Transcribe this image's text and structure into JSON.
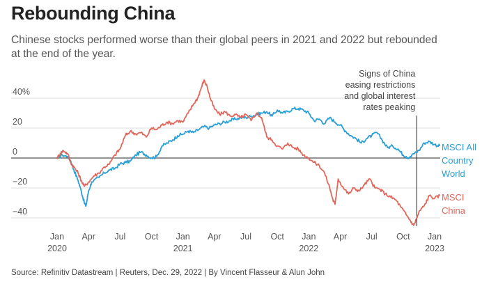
{
  "header": {
    "title": "Rebounding China",
    "subtitle": "Chinese stocks performed worse than their global peers in 2021 and 2022 but rebounded at the end of the year."
  },
  "footer": {
    "source": "Source: Refinitiv Datastream | Reuters, Dec. 29, 2022 | By Vincent Flasseur & Alun John"
  },
  "colors": {
    "msci_all": "#2a9fd6",
    "msci_china": "#e0675c",
    "grid": "#dddddd",
    "zero": "#555555"
  },
  "chart_data": {
    "type": "line",
    "title": "Rebounding China",
    "xlabel": "",
    "ylabel": "",
    "ylim": [
      -45,
      55
    ],
    "y_ticks": [
      {
        "value": 40,
        "label": "40%"
      },
      {
        "value": 20,
        "label": "20"
      },
      {
        "value": 0,
        "label": "0"
      },
      {
        "value": -20,
        "label": "−20"
      },
      {
        "value": -40,
        "label": "−40"
      }
    ],
    "x_ticks": [
      {
        "t": 0,
        "label": "Jan",
        "sub": "2020"
      },
      {
        "t": 3,
        "label": "Apr",
        "sub": ""
      },
      {
        "t": 6,
        "label": "Jul",
        "sub": ""
      },
      {
        "t": 9,
        "label": "Oct",
        "sub": ""
      },
      {
        "t": 12,
        "label": "Jan",
        "sub": "2021"
      },
      {
        "t": 15,
        "label": "Apr",
        "sub": ""
      },
      {
        "t": 18,
        "label": "Jul",
        "sub": ""
      },
      {
        "t": 21,
        "label": "Oct",
        "sub": ""
      },
      {
        "t": 24,
        "label": "Jan",
        "sub": "2022"
      },
      {
        "t": 27,
        "label": "Apr",
        "sub": ""
      },
      {
        "t": 30,
        "label": "Jul",
        "sub": ""
      },
      {
        "t": 33,
        "label": "Oct",
        "sub": ""
      },
      {
        "t": 36,
        "label": "Jan",
        "sub": "2023"
      }
    ],
    "annotation": {
      "t": 34.3,
      "lines": [
        "Signs of China",
        "easing restrictions",
        "and global interest",
        "rates peaking"
      ]
    },
    "series": [
      {
        "name": "MSCI All Country World",
        "label_lines": [
          "MSCI All",
          "Country",
          "World"
        ],
        "color_key": "msci_all",
        "points": [
          [
            0,
            0
          ],
          [
            0.5,
            2
          ],
          [
            1,
            1
          ],
          [
            1.3,
            -2
          ],
          [
            1.6,
            -8
          ],
          [
            2,
            -15
          ],
          [
            2.3,
            -22
          ],
          [
            2.6,
            -30
          ],
          [
            2.75,
            -32
          ],
          [
            3,
            -22
          ],
          [
            3.3,
            -16
          ],
          [
            4,
            -13
          ],
          [
            4.5,
            -10
          ],
          [
            5,
            -8
          ],
          [
            5.5,
            -7
          ],
          [
            6,
            -4
          ],
          [
            6.5,
            -3
          ],
          [
            7,
            -2
          ],
          [
            7.5,
            2
          ],
          [
            8,
            4
          ],
          [
            8.5,
            2
          ],
          [
            9,
            0
          ],
          [
            9.5,
            1
          ],
          [
            10,
            8
          ],
          [
            10.5,
            10
          ],
          [
            11,
            12
          ],
          [
            11.5,
            15
          ],
          [
            12,
            16
          ],
          [
            12.5,
            18
          ],
          [
            13,
            17
          ],
          [
            13.5,
            19
          ],
          [
            14,
            21
          ],
          [
            14.5,
            20
          ],
          [
            15,
            22
          ],
          [
            15.5,
            23
          ],
          [
            16,
            24
          ],
          [
            16.5,
            25
          ],
          [
            17,
            26
          ],
          [
            17.5,
            27
          ],
          [
            18,
            27
          ],
          [
            18.5,
            28
          ],
          [
            19,
            29
          ],
          [
            19.5,
            30
          ],
          [
            20,
            31
          ],
          [
            20.5,
            28
          ],
          [
            21,
            32
          ],
          [
            21.5,
            30
          ],
          [
            22,
            31
          ],
          [
            22.5,
            33
          ],
          [
            23,
            33
          ],
          [
            23.5,
            32
          ],
          [
            24,
            30
          ],
          [
            24.5,
            25
          ],
          [
            25,
            26
          ],
          [
            25.5,
            23
          ],
          [
            26,
            27
          ],
          [
            26.5,
            24
          ],
          [
            27,
            22
          ],
          [
            27.5,
            18
          ],
          [
            28,
            15
          ],
          [
            28.5,
            13
          ],
          [
            29,
            10
          ],
          [
            29.5,
            13
          ],
          [
            30,
            15
          ],
          [
            30.5,
            17
          ],
          [
            31,
            12
          ],
          [
            31.5,
            7
          ],
          [
            32,
            8
          ],
          [
            32.5,
            6
          ],
          [
            33,
            2
          ],
          [
            33.3,
            1
          ],
          [
            33.6,
            0
          ],
          [
            34,
            3
          ],
          [
            34.5,
            5
          ],
          [
            35,
            10
          ],
          [
            35.5,
            11
          ],
          [
            36,
            9
          ],
          [
            36.5,
            8
          ]
        ]
      },
      {
        "name": "MSCI China",
        "label_lines": [
          "MSCI",
          "China"
        ],
        "color_key": "msci_china",
        "points": [
          [
            0,
            0
          ],
          [
            0.3,
            3
          ],
          [
            0.6,
            5
          ],
          [
            1,
            3
          ],
          [
            1.3,
            -3
          ],
          [
            1.6,
            -6
          ],
          [
            2,
            -10
          ],
          [
            2.3,
            -15
          ],
          [
            2.6,
            -19
          ],
          [
            3,
            -16
          ],
          [
            3.5,
            -12
          ],
          [
            4,
            -10
          ],
          [
            4.5,
            -6
          ],
          [
            5,
            -4
          ],
          [
            5.5,
            2
          ],
          [
            6,
            6
          ],
          [
            6.5,
            15
          ],
          [
            7,
            18
          ],
          [
            7.5,
            16
          ],
          [
            8,
            17
          ],
          [
            8.5,
            14
          ],
          [
            9,
            20
          ],
          [
            9.5,
            19
          ],
          [
            10,
            22
          ],
          [
            10.5,
            24
          ],
          [
            11,
            23
          ],
          [
            11.5,
            25
          ],
          [
            12,
            24
          ],
          [
            12.5,
            30
          ],
          [
            13,
            36
          ],
          [
            13.4,
            40
          ],
          [
            13.7,
            46
          ],
          [
            14,
            52
          ],
          [
            14.3,
            48
          ],
          [
            14.6,
            40
          ],
          [
            15,
            33
          ],
          [
            15.5,
            29
          ],
          [
            16,
            31
          ],
          [
            16.5,
            28
          ],
          [
            17,
            29
          ],
          [
            17.5,
            27
          ],
          [
            18,
            29
          ],
          [
            18.5,
            25
          ],
          [
            19,
            30
          ],
          [
            19.5,
            27
          ],
          [
            20,
            14
          ],
          [
            20.5,
            12
          ],
          [
            21,
            8
          ],
          [
            21.5,
            6
          ],
          [
            22,
            10
          ],
          [
            22.5,
            7
          ],
          [
            23,
            6
          ],
          [
            23.5,
            2
          ],
          [
            24,
            0
          ],
          [
            24.5,
            -3
          ],
          [
            25,
            -5
          ],
          [
            25.5,
            -10
          ],
          [
            26,
            -20
          ],
          [
            26.3,
            -28
          ],
          [
            26.5,
            -31
          ],
          [
            26.8,
            -14
          ],
          [
            27.3,
            -20
          ],
          [
            27.8,
            -24
          ],
          [
            28.3,
            -20
          ],
          [
            28.8,
            -22
          ],
          [
            29.3,
            -18
          ],
          [
            29.8,
            -14
          ],
          [
            30.3,
            -20
          ],
          [
            30.8,
            -21
          ],
          [
            31.3,
            -24
          ],
          [
            31.8,
            -26
          ],
          [
            32.3,
            -28
          ],
          [
            32.8,
            -33
          ],
          [
            33.3,
            -38
          ],
          [
            33.7,
            -42
          ],
          [
            34,
            -45
          ],
          [
            34.3,
            -40
          ],
          [
            34.6,
            -35
          ],
          [
            35,
            -32
          ],
          [
            35.5,
            -25
          ],
          [
            36,
            -27
          ],
          [
            36.5,
            -25
          ]
        ]
      }
    ]
  }
}
